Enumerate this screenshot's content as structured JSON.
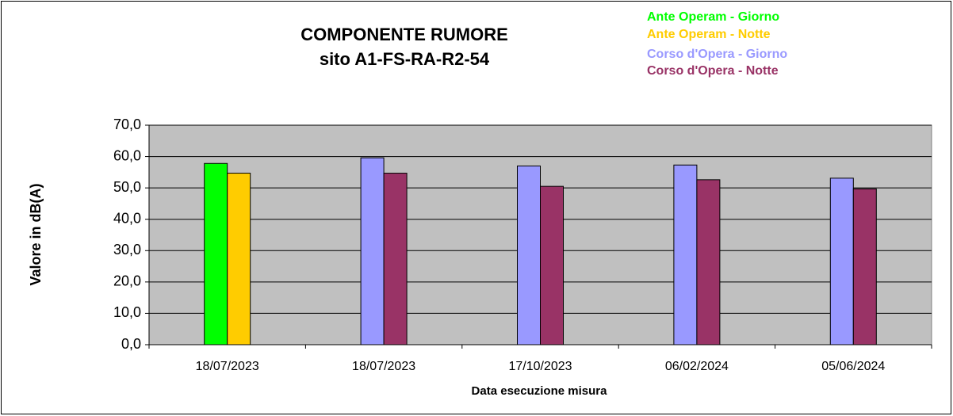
{
  "chart_data": {
    "type": "bar",
    "title": [
      "COMPONENTE RUMORE",
      "sito A1-FS-RA-R2-54"
    ],
    "x_label": "Data esecuzione misura",
    "y_label": "Valore in dB(A)",
    "categories": [
      "18/07/2023",
      "18/07/2023",
      "17/10/2023",
      "06/02/2024",
      "05/06/2024"
    ],
    "series": [
      {
        "name": "Ante Operam - Giorno",
        "color": "#00ff00",
        "values": [
          57.8,
          null,
          null,
          null,
          null
        ]
      },
      {
        "name": "Ante Operam - Notte",
        "color": "#ffcc00",
        "values": [
          54.7,
          null,
          null,
          null,
          null
        ]
      },
      {
        "name": "Corso d'Opera  - Giorno",
        "color": "#9999ff",
        "values": [
          null,
          59.6,
          57.0,
          57.3,
          53.1
        ]
      },
      {
        "name": "Corso d'Opera - Notte",
        "color": "#993366",
        "values": [
          null,
          54.7,
          50.5,
          52.6,
          49.7
        ]
      }
    ],
    "ylim": [
      0,
      70
    ],
    "yticks": [
      {
        "value": 0,
        "label": "0,0"
      },
      {
        "value": 10,
        "label": "10,0"
      },
      {
        "value": 20,
        "label": "20,0"
      },
      {
        "value": 30,
        "label": "30,0"
      },
      {
        "value": 40,
        "label": "40,0"
      },
      {
        "value": 50,
        "label": "50,0"
      },
      {
        "value": 60,
        "label": "60,0"
      },
      {
        "value": 70,
        "label": "70,0"
      }
    ],
    "grid": true
  }
}
